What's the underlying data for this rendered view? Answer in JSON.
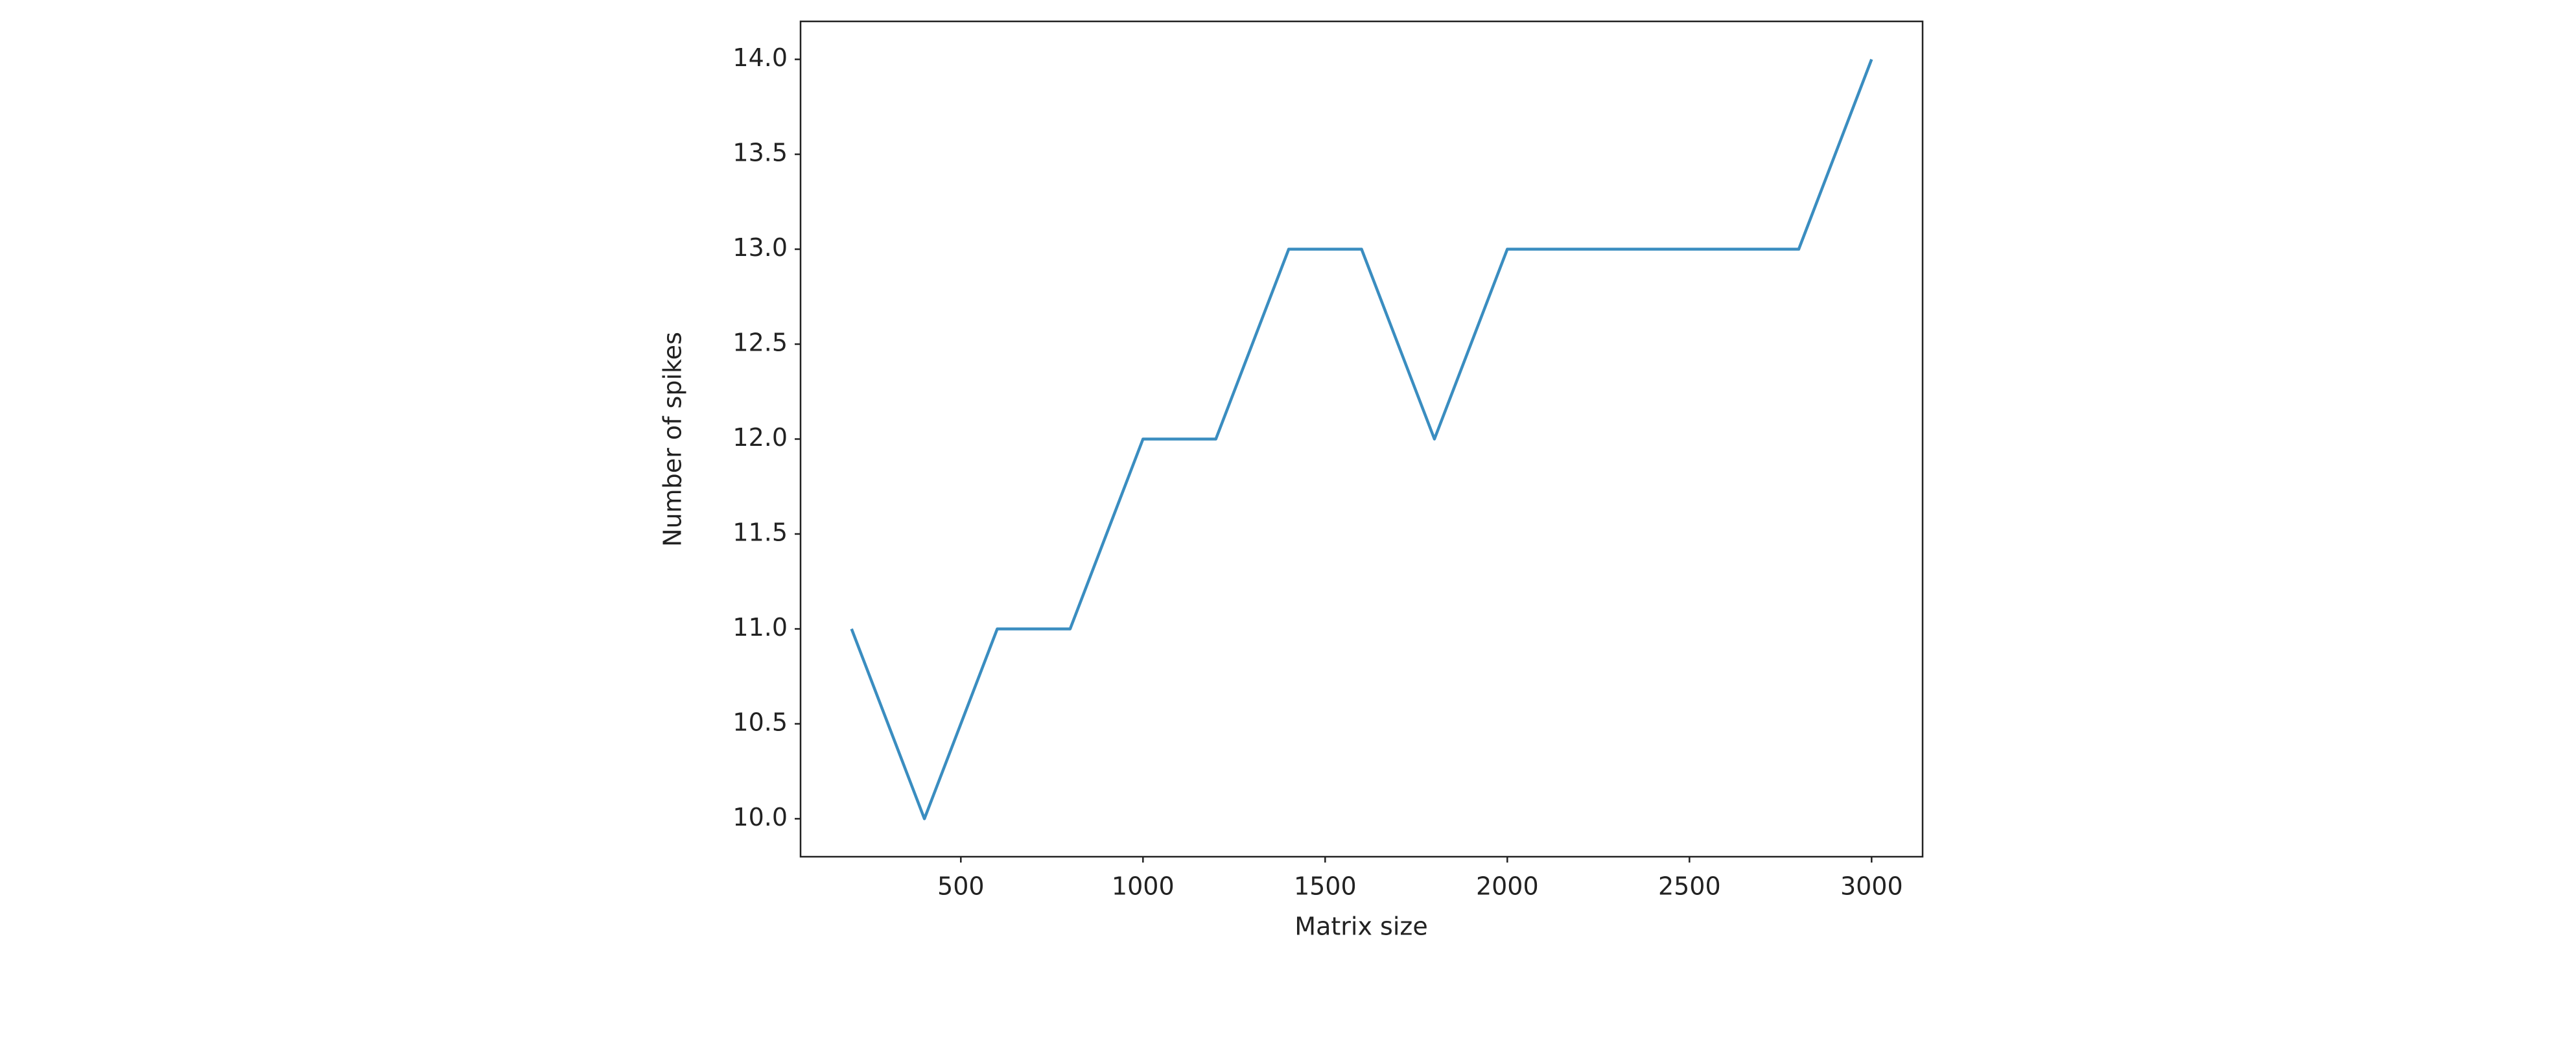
{
  "chart_data": {
    "type": "line",
    "x_label": "Matrix size",
    "y_label": "Number of spikes",
    "x": [
      200,
      400,
      600,
      800,
      1000,
      1200,
      1400,
      1600,
      1800,
      2000,
      2200,
      2400,
      2600,
      2800,
      3000
    ],
    "series": [
      {
        "color": "#3a8dc0",
        "values": [
          11,
          10,
          11,
          11,
          12,
          12,
          13,
          13,
          12,
          13,
          13,
          13,
          13,
          13,
          14
        ]
      }
    ],
    "xlim": [
      60,
      3140
    ],
    "xticks": [
      500,
      1000,
      1500,
      2000,
      2500,
      3000
    ],
    "ylim": [
      9.8,
      14.2
    ],
    "yticks": [
      {
        "value": 10,
        "label": "10.0"
      },
      10.5,
      {
        "value": 11,
        "label": "11.0"
      },
      11.5,
      {
        "value": 12,
        "label": "12.0"
      },
      12.5,
      {
        "value": 13,
        "label": "13.0"
      },
      13.5,
      {
        "value": 14,
        "label": "14.0"
      }
    ],
    "grid": false
  }
}
